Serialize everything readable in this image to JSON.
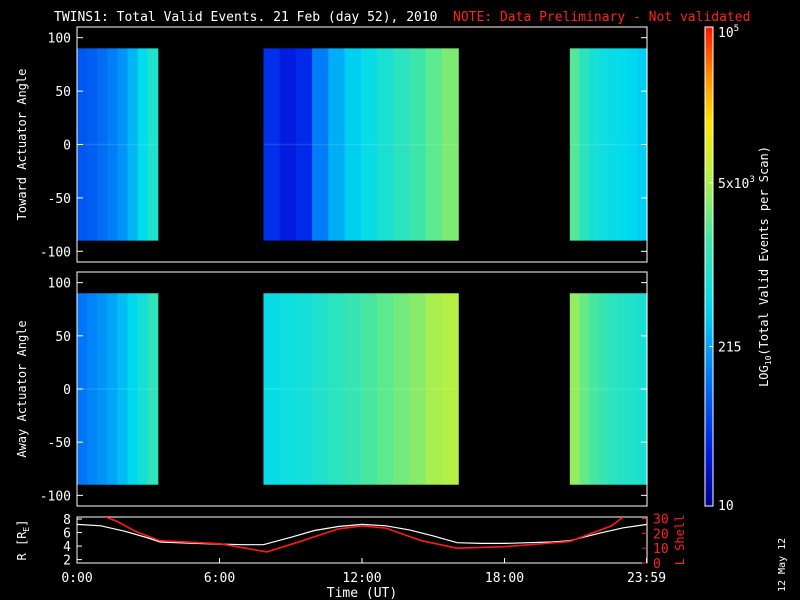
{
  "header": {
    "title": "TWINS1: Total Valid Events. 21 Feb (day  52), 2010",
    "note": "NOTE: Data Preliminary - Not validated"
  },
  "footer": {
    "date_stamp": "12 May 12"
  },
  "colors": {
    "note": "#ff2020",
    "orbit_r": "#ffffff",
    "orbit_l": "#ff1a1a"
  },
  "chart_data": [
    {
      "type": "heatmap",
      "name": "toward",
      "ylabel": "Toward Actuator Angle",
      "ylim": [
        -110,
        110
      ],
      "yticks": [
        "100",
        "50",
        "0",
        "-50",
        "-100"
      ],
      "ytick_values": [
        100,
        50,
        0,
        -50,
        -100
      ],
      "data_y_range": [
        -90,
        90
      ],
      "segments": [
        {
          "start_h": 0.0,
          "end_h": 3.4,
          "log_values": [
            1.85,
            1.9,
            2.0,
            2.1,
            2.25,
            2.45,
            2.7,
            2.95
          ]
        },
        {
          "start_h": 7.85,
          "end_h": 16.05,
          "log_values": [
            1.6,
            1.45,
            1.55,
            2.1,
            2.4,
            2.6,
            2.75,
            2.9,
            3.05,
            3.2,
            3.35,
            3.5
          ]
        },
        {
          "start_h": 20.75,
          "end_h": 24.0,
          "log_values": [
            3.3,
            3.05,
            2.9,
            2.8,
            2.75,
            2.7,
            2.65,
            2.6
          ]
        }
      ]
    },
    {
      "type": "heatmap",
      "name": "away",
      "ylabel": "Away Actuator Angle",
      "ylim": [
        -110,
        110
      ],
      "yticks": [
        "100",
        "50",
        "0",
        "-50",
        "-100"
      ],
      "ytick_values": [
        100,
        50,
        0,
        -50,
        -100
      ],
      "data_y_range": [
        -90,
        90
      ],
      "segments": [
        {
          "start_h": 0.0,
          "end_h": 3.4,
          "log_values": [
            2.05,
            2.15,
            2.25,
            2.35,
            2.5,
            2.65,
            2.85,
            3.1
          ]
        },
        {
          "start_h": 7.85,
          "end_h": 16.05,
          "log_values": [
            2.75,
            2.8,
            2.85,
            2.95,
            3.05,
            3.15,
            3.25,
            3.35,
            3.45,
            3.55,
            3.7,
            3.75
          ]
        },
        {
          "start_h": 20.75,
          "end_h": 24.0,
          "log_values": [
            3.6,
            3.4,
            3.25,
            3.15,
            3.05,
            3.0,
            2.95,
            2.9
          ]
        }
      ]
    },
    {
      "type": "line",
      "name": "orbit",
      "xlabel": "Time (UT)",
      "xlim": [
        0,
        24
      ],
      "xticks": [
        "0:00",
        "6:00",
        "12:00",
        "18:00",
        "23:59"
      ],
      "xtick_values": [
        0,
        6,
        12,
        18,
        23.98
      ],
      "ylabel_left": "R [RE]",
      "ylabel_left_main": "R [R",
      "ylabel_left_sub": "E",
      "ylabel_left_end": "]",
      "ylim_left": [
        1.5,
        8.3
      ],
      "yticks_left": [
        "8",
        "6",
        "4",
        "2"
      ],
      "ytick_values_left": [
        8,
        6,
        4,
        2
      ],
      "ylabel_right": "L Shell",
      "ylim_right": [
        0,
        31
      ],
      "yticks_right": [
        "30",
        "20",
        "10",
        "0"
      ],
      "ytick_values_right": [
        30,
        20,
        10,
        0
      ],
      "series": [
        {
          "axis": "left",
          "x": [
            0,
            1,
            2,
            3,
            3.5,
            5,
            6,
            7,
            7.85,
            9,
            10,
            11,
            12,
            13,
            14,
            15,
            16,
            17,
            18,
            19,
            20,
            20.75,
            22,
            23,
            24
          ],
          "y": [
            7.2,
            7.0,
            6.2,
            5.2,
            4.6,
            4.4,
            4.3,
            4.2,
            4.2,
            5.3,
            6.3,
            6.9,
            7.2,
            7.0,
            6.4,
            5.5,
            4.5,
            4.4,
            4.4,
            4.5,
            4.6,
            4.8,
            5.9,
            6.7,
            7.2
          ]
        },
        {
          "axis": "right",
          "x": [
            1.2,
            1.7,
            2.5,
            3.5,
            6,
            8.0,
            9.5,
            11,
            12,
            13,
            14.5,
            16,
            18,
            20.75,
            22.5,
            23.0
          ],
          "y": [
            31,
            28,
            21,
            15,
            13,
            7.5,
            15,
            23,
            25,
            23.5,
            15,
            10,
            11,
            14.5,
            25,
            31
          ]
        }
      ]
    },
    {
      "type": "heatmap",
      "name": "colorbar",
      "zlabel": "LOG10(Total Valid Events per Scan)",
      "zlabel_main": "LOG",
      "zlabel_sub": "10",
      "zlabel_end": "(Total Valid Events per Scan)",
      "zlim_log": [
        1,
        5
      ],
      "ticks": [
        {
          "main": "10",
          "exp": "5",
          "log": 5
        },
        {
          "main": "5x10",
          "exp": "3",
          "log": 3.699
        },
        {
          "main": "215",
          "exp": "",
          "log": 2.332
        },
        {
          "main": "10",
          "exp": "",
          "log": 1
        }
      ]
    }
  ]
}
